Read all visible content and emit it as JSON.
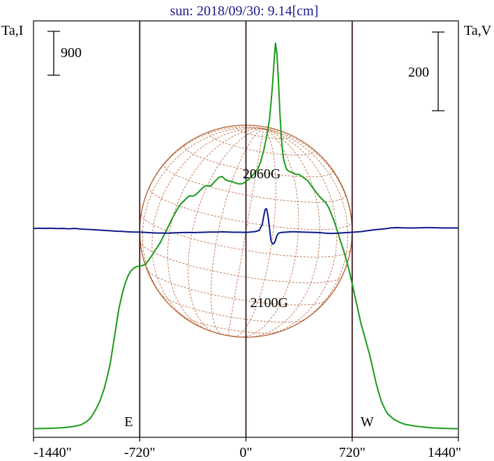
{
  "chart_data": {
    "type": "line",
    "title": "sun: 2018/09/30: 9.14[cm]",
    "y_left_label": "Ta,I",
    "y_right_label": "Ta,V",
    "scale_left": {
      "value": "900"
    },
    "scale_right": {
      "value": "200"
    },
    "x_unit": "arcsec",
    "xlim": [
      -1440,
      1440
    ],
    "x_ticks": [
      {
        "value": -1440,
        "label": "-1440\""
      },
      {
        "value": -720,
        "label": "-720\""
      },
      {
        "value": 0,
        "label": "0\""
      },
      {
        "value": 720,
        "label": "720\""
      },
      {
        "value": 1440,
        "label": "1440\""
      }
    ],
    "limb_lines": [
      {
        "x": -720,
        "label": "E"
      },
      {
        "x": 0,
        "label": ""
      },
      {
        "x": 720,
        "label": "W"
      }
    ],
    "disk_radius_arcsec": 720,
    "annotations": [
      {
        "text": "2060G",
        "x": 120,
        "y_v": 100
      },
      {
        "text": "2100G",
        "x": 170,
        "y_v": -80
      }
    ],
    "colors": {
      "intensity": "#1a9a1a",
      "polarization": "#0d1a8c",
      "disk": "#b35a2b",
      "title": "#1a1a8c",
      "axis": "#000000",
      "limb": "#3a1a1a"
    },
    "series": [
      {
        "name": "I",
        "axis": "left",
        "color": "#1a9a1a",
        "x": [
          -1440,
          -1360,
          -1300,
          -1240,
          -1200,
          -1160,
          -1120,
          -1080,
          -1050,
          -1020,
          -990,
          -960,
          -940,
          -920,
          -900,
          -880,
          -860,
          -840,
          -820,
          -800,
          -780,
          -760,
          -740,
          -720,
          -700,
          -680,
          -660,
          -640,
          -620,
          -600,
          -580,
          -560,
          -540,
          -520,
          -500,
          -480,
          -460,
          -440,
          -420,
          -400,
          -380,
          -360,
          -340,
          -320,
          -300,
          -280,
          -260,
          -240,
          -220,
          -200,
          -180,
          -160,
          -140,
          -120,
          -100,
          -80,
          -60,
          -40,
          -20,
          0,
          20,
          40,
          60,
          80,
          100,
          120,
          140,
          160,
          170,
          180,
          190,
          200,
          210,
          220,
          230,
          240,
          250,
          260,
          270,
          280,
          300,
          320,
          340,
          360,
          380,
          400,
          420,
          440,
          460,
          480,
          500,
          520,
          540,
          560,
          580,
          600,
          620,
          640,
          660,
          680,
          700,
          720,
          740,
          760,
          780,
          800,
          820,
          840,
          860,
          880,
          900,
          920,
          940,
          960,
          1000,
          1040,
          1080,
          1120,
          1160,
          1200,
          1240,
          1280,
          1320,
          1360,
          1400,
          1440
        ],
        "y": [
          20,
          22,
          28,
          38,
          50,
          65,
          90,
          150,
          230,
          370,
          540,
          780,
          1000,
          1250,
          1600,
          1950,
          2300,
          2550,
          2750,
          2900,
          3000,
          3050,
          3080,
          3090,
          3100,
          3130,
          3200,
          3280,
          3370,
          3450,
          3540,
          3650,
          3760,
          3870,
          3990,
          4090,
          4190,
          4270,
          4320,
          4380,
          4420,
          4410,
          4440,
          4490,
          4550,
          4600,
          4610,
          4600,
          4660,
          4720,
          4770,
          4780,
          4720,
          4700,
          4690,
          4670,
          4650,
          4640,
          4650,
          4690,
          4730,
          4790,
          4850,
          4920,
          5060,
          5270,
          5530,
          5870,
          6170,
          6520,
          6930,
          7300,
          7100,
          6600,
          6000,
          5500,
          5200,
          5050,
          4960,
          4900,
          4870,
          4850,
          4820,
          4820,
          4780,
          4740,
          4700,
          4620,
          4540,
          4470,
          4400,
          4340,
          4290,
          4200,
          4070,
          3920,
          3750,
          3570,
          3400,
          3210,
          3000,
          2750,
          2500,
          2250,
          2000,
          1800,
          1600,
          1400,
          1150,
          900,
          700,
          520,
          400,
          300,
          200,
          140,
          100,
          80,
          62,
          50,
          40,
          32,
          26,
          22,
          20,
          18
        ]
      },
      {
        "name": "V",
        "axis": "right",
        "color": "#0d1a8c",
        "x": [
          -1440,
          -1400,
          -1360,
          -1320,
          -1280,
          -1240,
          -1200,
          -1160,
          -1120,
          -1080,
          -1040,
          -1000,
          -960,
          -920,
          -880,
          -840,
          -800,
          -760,
          -720,
          -680,
          -640,
          -600,
          -560,
          -520,
          -480,
          -440,
          -400,
          -360,
          -320,
          -280,
          -240,
          -200,
          -160,
          -120,
          -80,
          -40,
          0,
          30,
          60,
          90,
          110,
          120,
          130,
          140,
          150,
          160,
          170,
          180,
          190,
          200,
          210,
          220,
          230,
          240,
          260,
          280,
          300,
          340,
          380,
          420,
          460,
          500,
          540,
          580,
          620,
          660,
          700,
          740,
          780,
          820,
          860,
          900,
          940,
          980,
          1020,
          1060,
          1100,
          1140,
          1180,
          1220,
          1260,
          1300,
          1340,
          1380,
          1420,
          1440
        ],
        "y": [
          0,
          1,
          0,
          1,
          -1,
          0,
          -2,
          0,
          -3,
          -5,
          -6,
          -8,
          -10,
          -12,
          -14,
          -15,
          -17,
          -18,
          -18,
          -20,
          -22,
          -23,
          -23,
          -24,
          -22,
          -21,
          -20,
          -21,
          -20,
          -19,
          -18,
          -18,
          -17,
          -18,
          -19,
          -19,
          -20,
          -18,
          -16,
          -10,
          20,
          60,
          95,
          98,
          60,
          0,
          -60,
          -78,
          -75,
          -60,
          -35,
          -25,
          -22,
          -20,
          -19,
          -18,
          -17,
          -17,
          -18,
          -19,
          -20,
          -21,
          -24,
          -25,
          -24,
          -22,
          -20,
          -18,
          -16,
          -12,
          -8,
          -5,
          -2,
          2,
          4,
          3,
          2,
          2,
          3,
          4,
          4,
          3,
          2,
          2,
          2,
          2
        ]
      }
    ]
  }
}
